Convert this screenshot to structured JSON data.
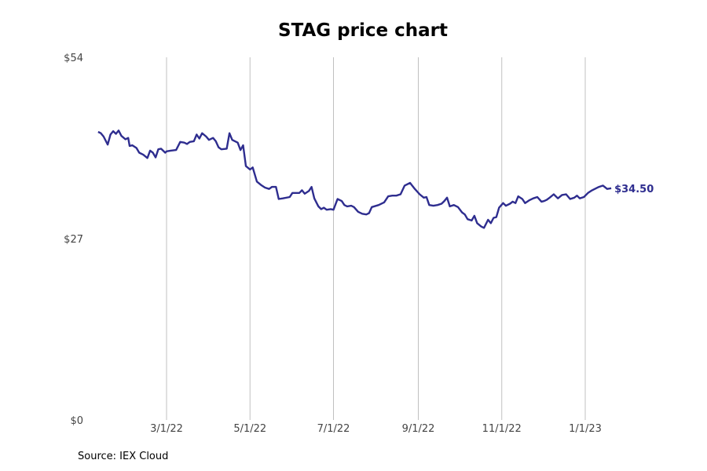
{
  "chart_data": {
    "type": "line",
    "title": "STAG price chart",
    "source": "Source: IEX Cloud",
    "line_color": "#2e2d8f",
    "grid_color": "#c0c0c0",
    "y_ticks": [
      {
        "value": 0,
        "label": "$0"
      },
      {
        "value": 27,
        "label": "$27"
      },
      {
        "value": 54,
        "label": "$54"
      }
    ],
    "ylim": [
      0,
      54
    ],
    "xlim": [
      "2022-01-10",
      "2023-01-31"
    ],
    "x_ticks": [
      {
        "date": "2022-03-01",
        "label": "3/1/22"
      },
      {
        "date": "2022-05-01",
        "label": "5/1/22"
      },
      {
        "date": "2022-07-01",
        "label": "7/1/22"
      },
      {
        "date": "2022-09-01",
        "label": "9/1/22"
      },
      {
        "date": "2022-11-01",
        "label": "11/1/22"
      },
      {
        "date": "2023-01-01",
        "label": "1/1/23"
      }
    ],
    "end_label": "$34.50",
    "series": [
      {
        "values": [
          [
            "2022-01-10",
            42.9
          ],
          [
            "2022-01-12",
            42.7
          ],
          [
            "2022-01-14",
            42.2
          ],
          [
            "2022-01-17",
            41.0
          ],
          [
            "2022-01-19",
            42.5
          ],
          [
            "2022-01-21",
            43.0
          ],
          [
            "2022-01-23",
            42.6
          ],
          [
            "2022-01-25",
            43.1
          ],
          [
            "2022-01-27",
            42.3
          ],
          [
            "2022-01-30",
            41.8
          ],
          [
            "2022-02-01",
            42.0
          ],
          [
            "2022-02-02",
            40.8
          ],
          [
            "2022-02-04",
            40.9
          ],
          [
            "2022-02-07",
            40.5
          ],
          [
            "2022-02-09",
            39.8
          ],
          [
            "2022-02-12",
            39.5
          ],
          [
            "2022-02-15",
            39.0
          ],
          [
            "2022-02-17",
            40.1
          ],
          [
            "2022-02-19",
            39.8
          ],
          [
            "2022-02-21",
            39.1
          ],
          [
            "2022-02-23",
            40.3
          ],
          [
            "2022-02-25",
            40.4
          ],
          [
            "2022-02-28",
            39.8
          ],
          [
            "2022-03-01",
            40.0
          ],
          [
            "2022-03-04",
            40.1
          ],
          [
            "2022-03-08",
            40.2
          ],
          [
            "2022-03-11",
            41.4
          ],
          [
            "2022-03-14",
            41.3
          ],
          [
            "2022-03-16",
            41.1
          ],
          [
            "2022-03-18",
            41.4
          ],
          [
            "2022-03-21",
            41.5
          ],
          [
            "2022-03-23",
            42.5
          ],
          [
            "2022-03-25",
            41.9
          ],
          [
            "2022-03-27",
            42.7
          ],
          [
            "2022-03-30",
            42.2
          ],
          [
            "2022-04-01",
            41.7
          ],
          [
            "2022-04-04",
            42.0
          ],
          [
            "2022-04-06",
            41.5
          ],
          [
            "2022-04-08",
            40.6
          ],
          [
            "2022-04-10",
            40.3
          ],
          [
            "2022-04-14",
            40.4
          ],
          [
            "2022-04-16",
            42.7
          ],
          [
            "2022-04-18",
            41.7
          ],
          [
            "2022-04-22",
            41.3
          ],
          [
            "2022-04-24",
            40.2
          ],
          [
            "2022-04-26",
            40.9
          ],
          [
            "2022-04-28",
            37.8
          ],
          [
            "2022-05-01",
            37.3
          ],
          [
            "2022-05-03",
            37.6
          ],
          [
            "2022-05-06",
            35.5
          ],
          [
            "2022-05-09",
            35.0
          ],
          [
            "2022-05-12",
            34.6
          ],
          [
            "2022-05-15",
            34.4
          ],
          [
            "2022-05-17",
            34.7
          ],
          [
            "2022-05-20",
            34.7
          ],
          [
            "2022-05-22",
            32.9
          ],
          [
            "2022-05-25",
            33.0
          ],
          [
            "2022-05-30",
            33.2
          ],
          [
            "2022-06-01",
            33.8
          ],
          [
            "2022-06-06",
            33.8
          ],
          [
            "2022-06-08",
            34.2
          ],
          [
            "2022-06-10",
            33.7
          ],
          [
            "2022-06-13",
            34.1
          ],
          [
            "2022-06-15",
            34.7
          ],
          [
            "2022-06-17",
            33.0
          ],
          [
            "2022-06-20",
            31.8
          ],
          [
            "2022-06-22",
            31.4
          ],
          [
            "2022-06-24",
            31.6
          ],
          [
            "2022-06-26",
            31.3
          ],
          [
            "2022-06-29",
            31.4
          ],
          [
            "2022-07-01",
            31.3
          ],
          [
            "2022-07-04",
            32.9
          ],
          [
            "2022-07-07",
            32.6
          ],
          [
            "2022-07-09",
            32.0
          ],
          [
            "2022-07-11",
            31.8
          ],
          [
            "2022-07-14",
            31.9
          ],
          [
            "2022-07-16",
            31.7
          ],
          [
            "2022-07-19",
            31.0
          ],
          [
            "2022-07-22",
            30.7
          ],
          [
            "2022-07-25",
            30.6
          ],
          [
            "2022-07-27",
            30.8
          ],
          [
            "2022-07-29",
            31.7
          ],
          [
            "2022-08-03",
            32.0
          ],
          [
            "2022-08-07",
            32.4
          ],
          [
            "2022-08-10",
            33.3
          ],
          [
            "2022-08-13",
            33.4
          ],
          [
            "2022-08-16",
            33.4
          ],
          [
            "2022-08-19",
            33.6
          ],
          [
            "2022-08-22",
            34.9
          ],
          [
            "2022-08-26",
            35.3
          ],
          [
            "2022-08-29",
            34.5
          ],
          [
            "2022-09-02",
            33.6
          ],
          [
            "2022-09-05",
            33.1
          ],
          [
            "2022-09-07",
            33.2
          ],
          [
            "2022-09-09",
            32.0
          ],
          [
            "2022-09-12",
            31.9
          ],
          [
            "2022-09-15",
            32.0
          ],
          [
            "2022-09-18",
            32.2
          ],
          [
            "2022-09-20",
            32.6
          ],
          [
            "2022-09-22",
            33.1
          ],
          [
            "2022-09-24",
            31.8
          ],
          [
            "2022-09-27",
            32.0
          ],
          [
            "2022-09-30",
            31.7
          ],
          [
            "2022-10-03",
            30.9
          ],
          [
            "2022-10-05",
            30.6
          ],
          [
            "2022-10-07",
            29.9
          ],
          [
            "2022-10-10",
            29.7
          ],
          [
            "2022-10-12",
            30.4
          ],
          [
            "2022-10-14",
            29.3
          ],
          [
            "2022-10-17",
            28.8
          ],
          [
            "2022-10-19",
            28.6
          ],
          [
            "2022-10-22",
            29.8
          ],
          [
            "2022-10-24",
            29.3
          ],
          [
            "2022-10-26",
            30.1
          ],
          [
            "2022-10-28",
            30.2
          ],
          [
            "2022-10-30",
            31.6
          ],
          [
            "2022-11-02",
            32.3
          ],
          [
            "2022-11-04",
            31.9
          ],
          [
            "2022-11-07",
            32.2
          ],
          [
            "2022-11-09",
            32.5
          ],
          [
            "2022-11-11",
            32.3
          ],
          [
            "2022-11-13",
            33.3
          ],
          [
            "2022-11-16",
            32.9
          ],
          [
            "2022-11-18",
            32.3
          ],
          [
            "2022-11-21",
            32.7
          ],
          [
            "2022-11-24",
            33.0
          ],
          [
            "2022-11-27",
            33.2
          ],
          [
            "2022-11-30",
            32.5
          ],
          [
            "2022-12-02",
            32.6
          ],
          [
            "2022-12-04",
            32.8
          ],
          [
            "2022-12-06",
            33.1
          ],
          [
            "2022-12-09",
            33.6
          ],
          [
            "2022-12-12",
            33.0
          ],
          [
            "2022-12-15",
            33.5
          ],
          [
            "2022-12-18",
            33.6
          ],
          [
            "2022-12-21",
            32.9
          ],
          [
            "2022-12-24",
            33.1
          ],
          [
            "2022-12-26",
            33.4
          ],
          [
            "2022-12-28",
            33.0
          ],
          [
            "2022-12-31",
            33.2
          ],
          [
            "2023-01-03",
            33.8
          ],
          [
            "2023-01-06",
            34.2
          ],
          [
            "2023-01-09",
            34.5
          ],
          [
            "2023-01-11",
            34.7
          ],
          [
            "2023-01-14",
            34.9
          ],
          [
            "2023-01-17",
            34.4
          ],
          [
            "2023-01-20",
            34.5
          ]
        ]
      }
    ]
  }
}
